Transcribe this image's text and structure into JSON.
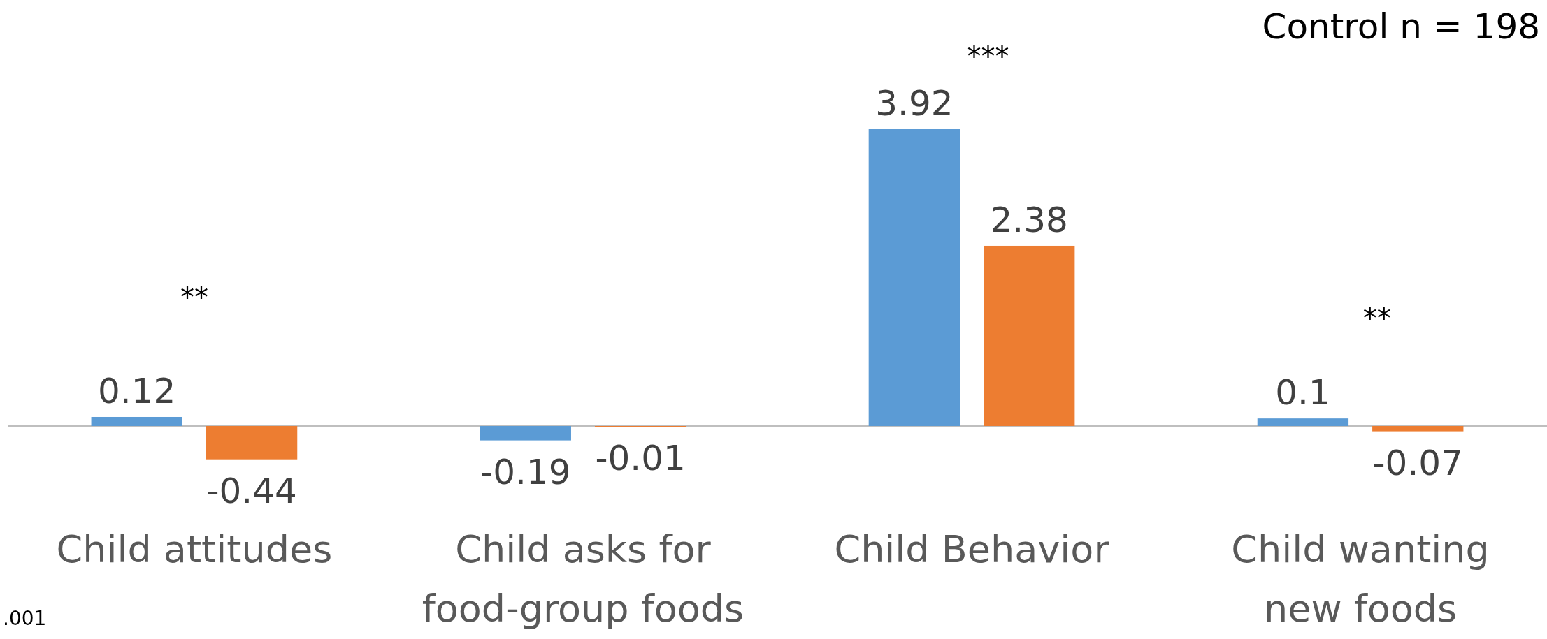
{
  "chart_data": {
    "type": "bar",
    "categories": [
      "Child attitudes",
      "Child asks for food-group foods",
      "Child Behavior",
      "Child wanting new foods"
    ],
    "series": [
      {
        "color": "#5b9bd5",
        "values": [
          0.12,
          -0.19,
          3.92,
          0.1
        ]
      },
      {
        "color": "#ed7d31",
        "values": [
          -0.44,
          -0.01,
          2.38,
          -0.07
        ]
      }
    ],
    "data_labels": true,
    "annotations": [
      "**",
      "***",
      "**",
      "Control n = 198",
      ".001"
    ]
  }
}
